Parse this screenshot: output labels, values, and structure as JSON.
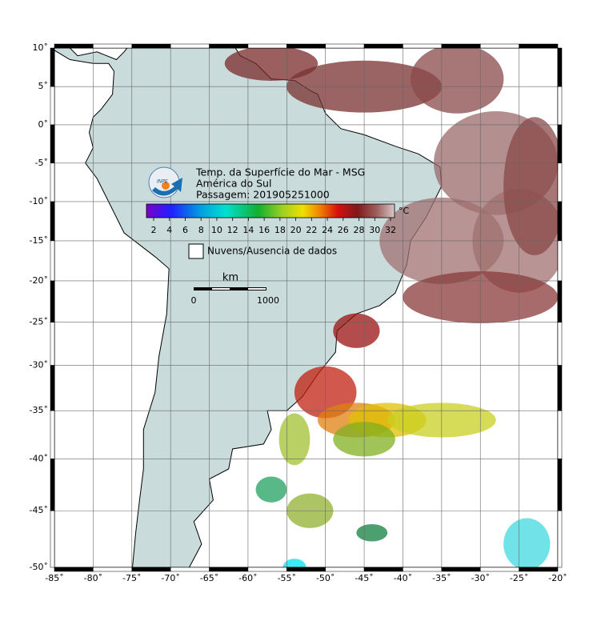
{
  "title_lines": [
    "Temp. da Superfície do Mar - MSG",
    "América do Sul",
    "Passagem: 201905251000"
  ],
  "colorbar": {
    "ticks": [
      "2",
      "4",
      "6",
      "8",
      "10",
      "12",
      "14",
      "16",
      "18",
      "20",
      "22",
      "24",
      "26",
      "28",
      "30",
      "32"
    ],
    "unit": "°C"
  },
  "legend": "Nuvens/Ausencia de dados",
  "scale_bar": {
    "unit": "km",
    "labels": [
      "0",
      "1000"
    ]
  },
  "axes": {
    "lat": [
      "10˚",
      "5˚",
      "0˚",
      "-5˚",
      "-10˚",
      "-15˚",
      "-20˚",
      "-25˚",
      "-30˚",
      "-35˚",
      "-40˚",
      "-45˚",
      "-50˚"
    ],
    "lon": [
      "-85˚",
      "-80˚",
      "-75˚",
      "-70˚",
      "-65˚",
      "-60˚",
      "-55˚",
      "-50˚",
      "-45˚",
      "-40˚",
      "-35˚",
      "-30˚",
      "-25˚",
      "-20˚"
    ]
  }
}
